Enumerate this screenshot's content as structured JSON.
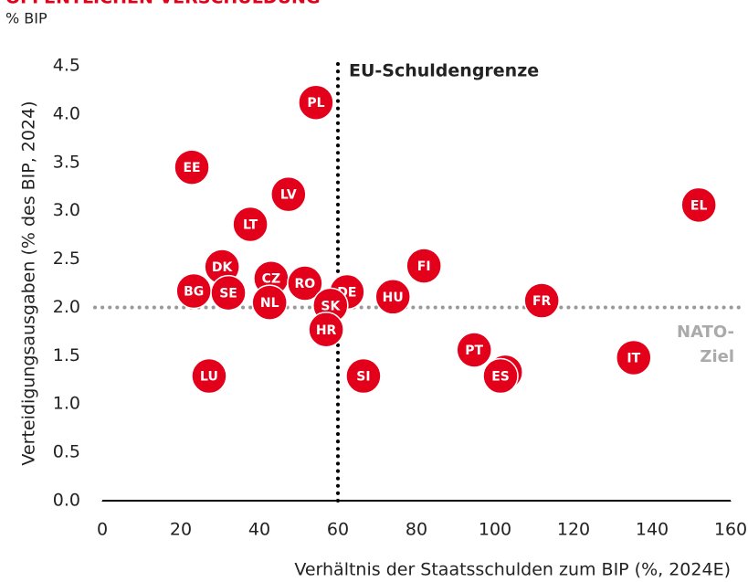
{
  "chart_data": {
    "type": "scatter",
    "title": "ÖFFENTLICHEN VERSCHULDUNG",
    "subtitle": "% BIP",
    "x_label": "Verhältnis der Staatsschulden zum BIP (%, 2024E)",
    "y_label": "Verteidigungsausgaben (% des BIP, 2024)",
    "xlim": [
      0,
      160
    ],
    "xticks": [
      0,
      20,
      40,
      60,
      80,
      100,
      120,
      140,
      160
    ],
    "ylim": [
      0,
      4.5
    ],
    "yticks": [
      {
        "value": 0,
        "label": "0.0"
      },
      0.5,
      {
        "value": 1,
        "label": "1.0"
      },
      1.5,
      {
        "value": 2,
        "label": "2.0"
      },
      2.5,
      {
        "value": 3,
        "label": "3.0"
      },
      3.5,
      {
        "value": 4,
        "label": "4.0"
      },
      4.5
    ],
    "x": [
      54.4,
      22.8,
      47.4,
      37.7,
      151.9,
      81.9,
      30.5,
      43,
      51.6,
      23.3,
      32.1,
      62.3,
      42.6,
      74,
      111.9,
      58.1,
      57,
      94.7,
      102.6,
      101.4,
      135.3,
      27.2,
      66.5
    ],
    "series": [
      {
        "color": "#e2001a",
        "labels": [
          "PL",
          "EE",
          "LV",
          "LT",
          "EL",
          "FI",
          "DK",
          "CZ",
          "RO",
          "BG",
          "SE",
          "DE",
          "NL",
          "HU",
          "FR",
          "SK",
          "HR",
          "PT",
          "BE",
          "ES",
          "IT",
          "LU",
          "SI"
        ],
        "values": [
          4.12,
          3.45,
          3.17,
          2.86,
          3.06,
          2.43,
          2.42,
          2.3,
          2.25,
          2.17,
          2.15,
          2.16,
          2.05,
          2.11,
          2.07,
          2.02,
          1.77,
          1.56,
          1.33,
          1.29,
          1.48,
          1.29,
          1.29
        ]
      }
    ],
    "vline": {
      "x": 60,
      "label": "EU-Schuldengrenze"
    },
    "hline": {
      "y": 2,
      "label": [
        "NATO-",
        "Ziel"
      ]
    }
  }
}
